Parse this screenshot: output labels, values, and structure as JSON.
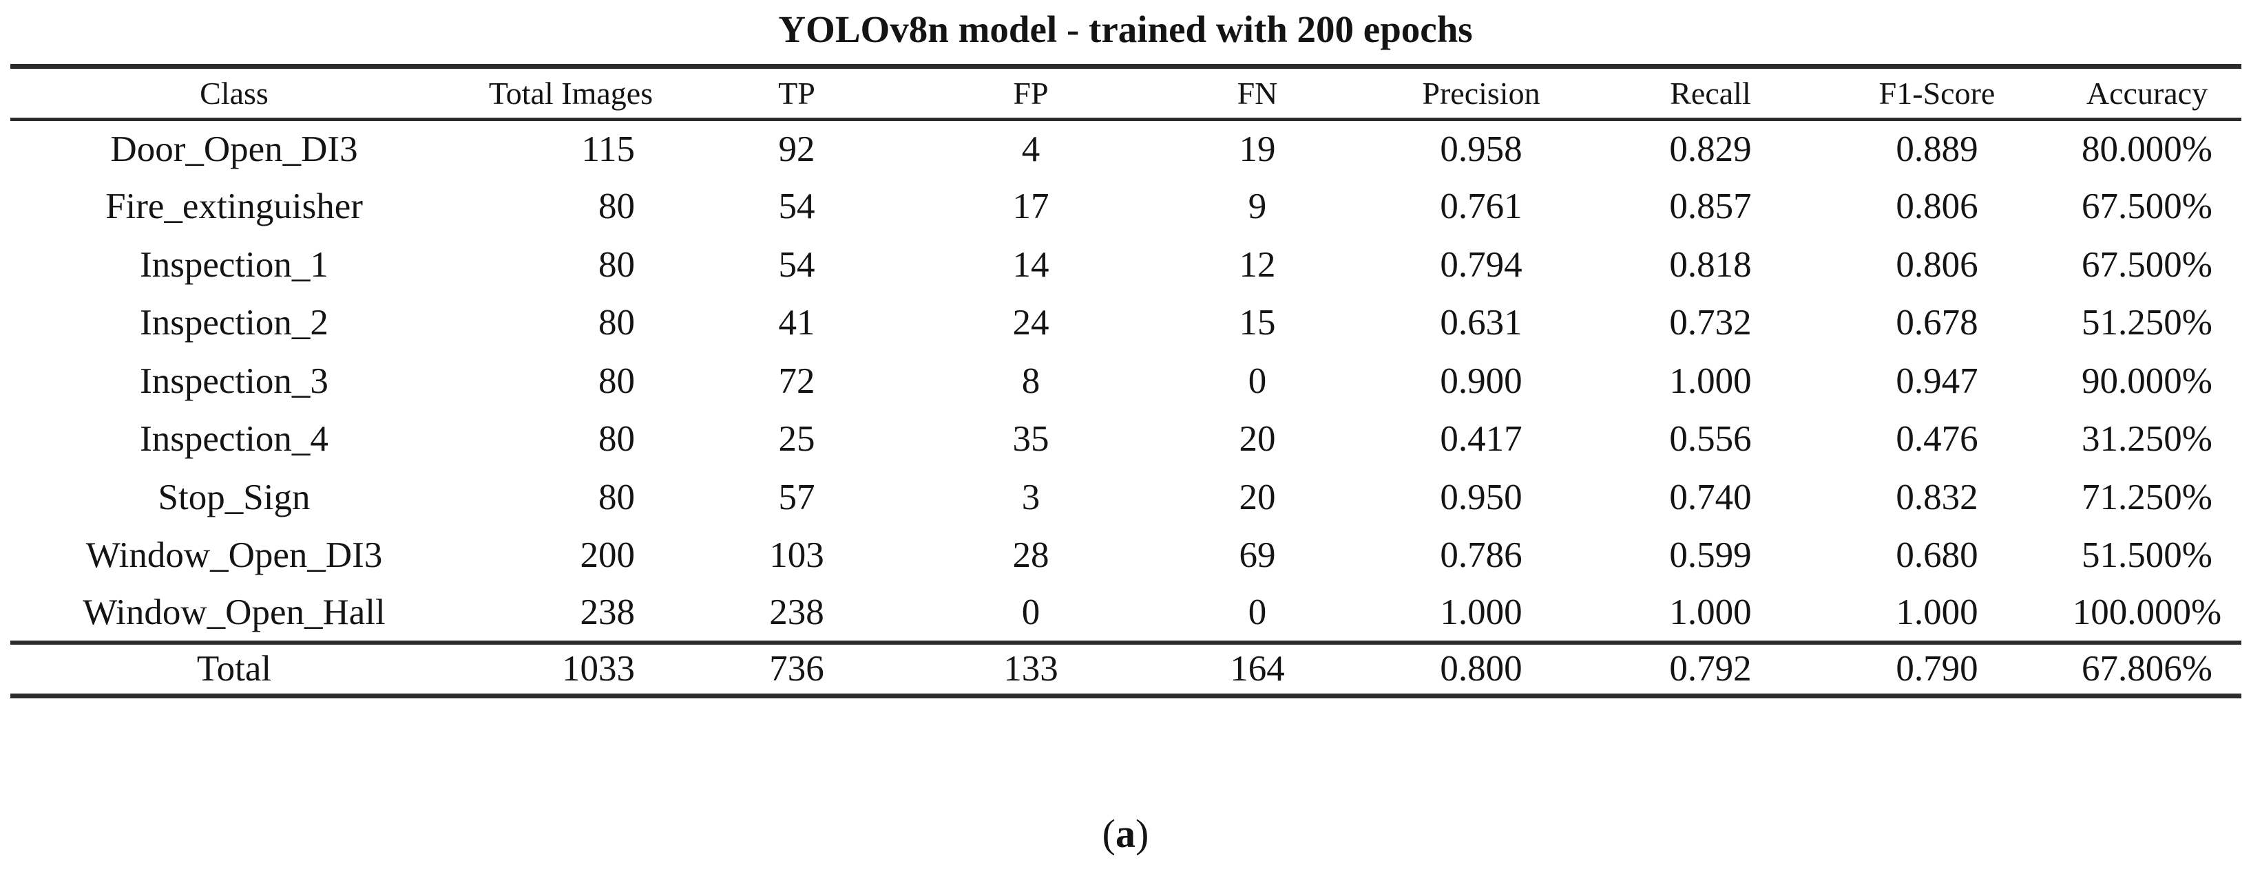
{
  "title": "YOLOv8n model - trained with 200 epochs",
  "table": {
    "columns": [
      "Class",
      "Total Images",
      "TP",
      "FP",
      "FN",
      "Precision",
      "Recall",
      "F1-Score",
      "Accuracy"
    ],
    "rows": [
      [
        "Door_Open_DI3",
        "115",
        "92",
        "4",
        "19",
        "0.958",
        "0.829",
        "0.889",
        "80.000%"
      ],
      [
        "Fire_extinguisher",
        "80",
        "54",
        "17",
        "9",
        "0.761",
        "0.857",
        "0.806",
        "67.500%"
      ],
      [
        "Inspection_1",
        "80",
        "54",
        "14",
        "12",
        "0.794",
        "0.818",
        "0.806",
        "67.500%"
      ],
      [
        "Inspection_2",
        "80",
        "41",
        "24",
        "15",
        "0.631",
        "0.732",
        "0.678",
        "51.250%"
      ],
      [
        "Inspection_3",
        "80",
        "72",
        "8",
        "0",
        "0.900",
        "1.000",
        "0.947",
        "90.000%"
      ],
      [
        "Inspection_4",
        "80",
        "25",
        "35",
        "20",
        "0.417",
        "0.556",
        "0.476",
        "31.250%"
      ],
      [
        "Stop_Sign",
        "80",
        "57",
        "3",
        "20",
        "0.950",
        "0.740",
        "0.832",
        "71.250%"
      ],
      [
        "Window_Open_DI3",
        "200",
        "103",
        "28",
        "69",
        "0.786",
        "0.599",
        "0.680",
        "51.500%"
      ],
      [
        "Window_Open_Hall",
        "238",
        "238",
        "0",
        "0",
        "1.000",
        "1.000",
        "1.000",
        "100.000%"
      ]
    ],
    "total_row": [
      "Total",
      "1033",
      "736",
      "133",
      "164",
      "0.800",
      "0.792",
      "0.790",
      "67.806%"
    ]
  },
  "caption": {
    "prefix": "(",
    "letter": "a",
    "suffix": ")"
  },
  "colors": {
    "background": "#ffffff",
    "text": "#141414",
    "rule": "#2c2c2c"
  }
}
